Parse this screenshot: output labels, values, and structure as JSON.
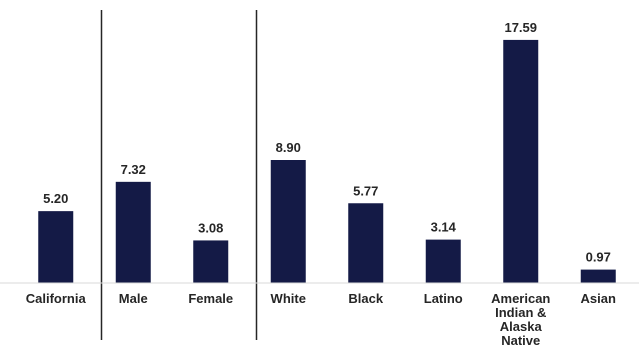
{
  "chart_data": {
    "type": "bar",
    "categories": [
      "California",
      "Male",
      "Female",
      "White",
      "Black",
      "Latino",
      "American Indian & Alaska Native",
      "Asian"
    ],
    "category_label_lines": [
      [
        "California"
      ],
      [
        "Male"
      ],
      [
        "Female"
      ],
      [
        "White"
      ],
      [
        "Black"
      ],
      [
        "Latino"
      ],
      [
        "American",
        "Indian &",
        "Alaska",
        "Native"
      ],
      [
        "Asian"
      ]
    ],
    "values": [
      5.2,
      7.32,
      3.08,
      8.9,
      5.77,
      3.14,
      17.59,
      0.97
    ],
    "value_labels": [
      "5.20",
      "7.32",
      "3.08",
      "8.90",
      "5.77",
      "3.14",
      "17.59",
      "0.97"
    ],
    "group_separators_after": [
      0,
      2
    ],
    "title": "",
    "xlabel": "",
    "ylabel": "",
    "ylim": [
      0,
      20
    ],
    "grid": false,
    "bar_color": "#141a46",
    "axis_color": "#d9d9d9",
    "separator_color": "#262626"
  }
}
